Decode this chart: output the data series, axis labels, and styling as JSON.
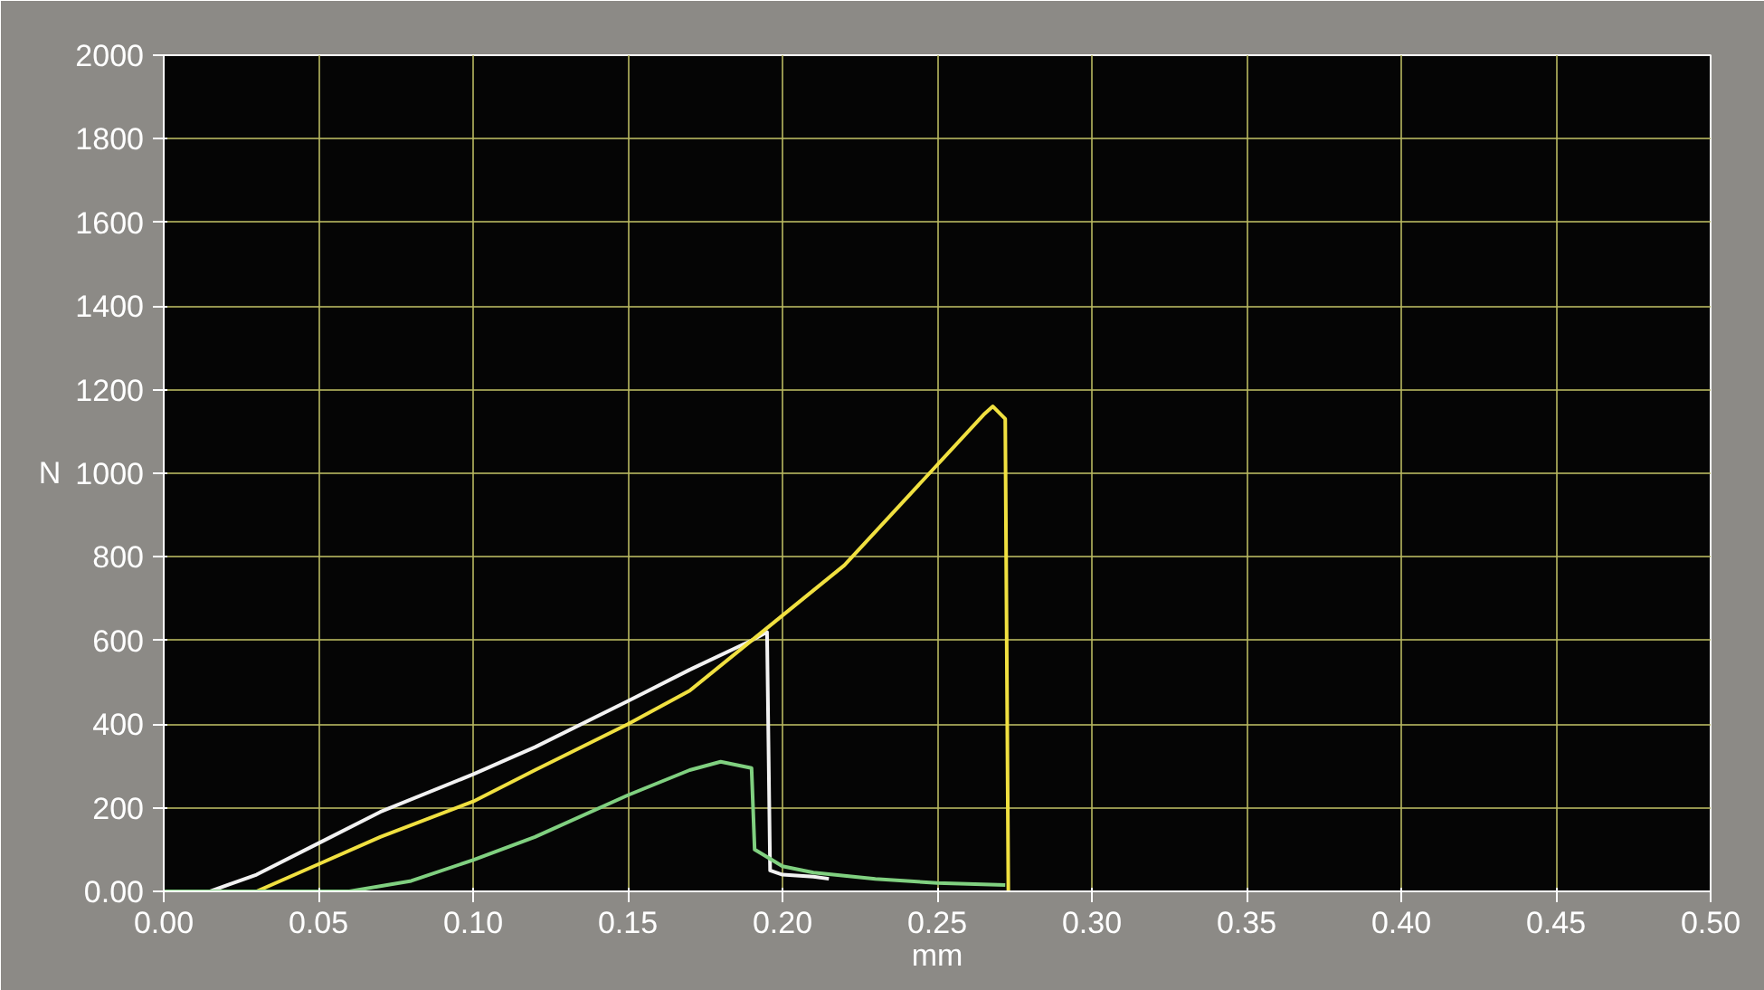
{
  "chart_data": {
    "type": "line",
    "xlabel": "mm",
    "ylabel": "N",
    "xlim": [
      0,
      0.5
    ],
    "ylim": [
      0,
      2000
    ],
    "xticks": [
      {
        "value": 0,
        "label": "0.00"
      },
      {
        "value": 0.05,
        "label": "0.05"
      },
      {
        "value": 0.1,
        "label": "0.10"
      },
      {
        "value": 0.15,
        "label": "0.15"
      },
      {
        "value": 0.2,
        "label": "0.20"
      },
      {
        "value": 0.25,
        "label": "0.25"
      },
      {
        "value": 0.3,
        "label": "0.30"
      },
      {
        "value": 0.35,
        "label": "0.35"
      },
      {
        "value": 0.4,
        "label": "0.40"
      },
      {
        "value": 0.45,
        "label": "0.45"
      },
      {
        "value": 0.5,
        "label": "0.50"
      }
    ],
    "yticks": [
      {
        "value": 0,
        "label": "0.00"
      },
      200,
      400,
      600,
      800,
      1000,
      1200,
      1400,
      1600,
      1800,
      2000
    ],
    "grid": true,
    "line_style": "solid",
    "marker": "none",
    "series": [
      {
        "color": "#f2f2f2",
        "x": [
          0,
          0.015,
          0.03,
          0.05,
          0.07,
          0.1,
          0.12,
          0.15,
          0.17,
          0.19,
          0.195,
          0.196,
          0.2,
          0.21,
          0.215
        ],
        "values": [
          0,
          0,
          40,
          115,
          190,
          280,
          345,
          455,
          530,
          600,
          620,
          50,
          40,
          35,
          30
        ]
      },
      {
        "color": "#f0e040",
        "x": [
          0,
          0.03,
          0.05,
          0.07,
          0.1,
          0.12,
          0.15,
          0.17,
          0.2,
          0.22,
          0.25,
          0.265,
          0.268,
          0.272,
          0.273
        ],
        "values": [
          0,
          0,
          65,
          130,
          215,
          290,
          400,
          480,
          660,
          780,
          1020,
          1140,
          1160,
          1130,
          0
        ]
      },
      {
        "color": "#80d080",
        "x": [
          0,
          0.06,
          0.08,
          0.1,
          0.12,
          0.15,
          0.17,
          0.18,
          0.19,
          0.191,
          0.2,
          0.21,
          0.23,
          0.25,
          0.272
        ],
        "values": [
          0,
          0,
          25,
          75,
          130,
          230,
          290,
          310,
          295,
          100,
          60,
          45,
          30,
          20,
          15
        ]
      }
    ]
  }
}
